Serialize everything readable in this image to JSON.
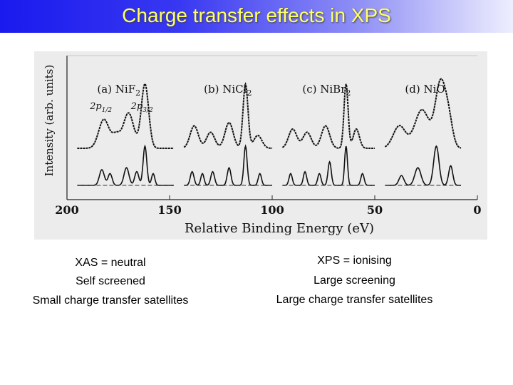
{
  "slide": {
    "title": "Charge transfer effects in XPS",
    "left_column": [
      "XAS = neutral",
      "Self screened",
      "Small charge transfer satellites"
    ],
    "right_column": [
      "XPS = ionising",
      "Large screening",
      "Large charge transfer satellites"
    ]
  },
  "chart_data": {
    "type": "line",
    "xlabel": "Relative Binding Energy (eV)",
    "ylabel": "Intensity (arb. units)",
    "xlim": [
      200,
      0
    ],
    "x_ticks": [
      200,
      150,
      100,
      50,
      0
    ],
    "x_tick_labels": [
      "200",
      "150",
      "100",
      "50",
      "0"
    ],
    "grid": false,
    "panels": [
      {
        "label": "(a) NiF",
        "subscript": "2",
        "peak_labels": [
          {
            "main": "2p",
            "sub": "1/2",
            "x": 184
          },
          {
            "main": "2p",
            "sub": "3/2",
            "x": 164
          }
        ],
        "x_range": [
          195,
          148
        ],
        "top_peaks": [
          [
            182,
            0.45,
            2.5
          ],
          [
            170,
            0.55,
            2.5
          ],
          [
            162,
            1.0,
            1.8
          ],
          [
            176,
            0.2,
            2
          ]
        ],
        "bottom_peaks": [
          [
            183,
            0.4,
            1.2
          ],
          [
            179,
            0.3,
            1.0
          ],
          [
            171,
            0.45,
            1.2
          ],
          [
            166,
            0.35,
            1.0
          ],
          [
            162,
            1.0,
            0.9
          ],
          [
            158,
            0.3,
            0.8
          ]
        ]
      },
      {
        "label": "(b) NiCl",
        "subscript": "2",
        "peak_labels": [],
        "x_range": [
          143,
          100
        ],
        "top_peaks": [
          [
            138,
            0.35,
            2
          ],
          [
            130,
            0.25,
            2
          ],
          [
            121,
            0.4,
            2
          ],
          [
            113,
            1.0,
            1.2
          ],
          [
            107,
            0.2,
            2
          ]
        ],
        "bottom_peaks": [
          [
            139,
            0.35,
            0.9
          ],
          [
            134,
            0.3,
            0.8
          ],
          [
            129,
            0.35,
            0.9
          ],
          [
            121,
            0.45,
            0.9
          ],
          [
            113,
            1.0,
            0.8
          ],
          [
            106,
            0.3,
            0.8
          ]
        ]
      },
      {
        "label": "(c) NiBr",
        "subscript": "2",
        "peak_labels": [],
        "x_range": [
          95,
          50
        ],
        "top_peaks": [
          [
            90,
            0.3,
            2
          ],
          [
            83,
            0.25,
            2
          ],
          [
            74,
            0.35,
            2
          ],
          [
            64,
            1.0,
            1.0
          ],
          [
            59,
            0.3,
            1.5
          ]
        ],
        "bottom_peaks": [
          [
            91,
            0.3,
            0.8
          ],
          [
            84,
            0.35,
            0.8
          ],
          [
            77,
            0.3,
            0.8
          ],
          [
            72,
            0.6,
            0.8
          ],
          [
            64,
            1.0,
            0.7
          ],
          [
            56,
            0.3,
            0.8
          ]
        ]
      },
      {
        "label": "(d) NiO",
        "subscript": "",
        "peak_labels": [],
        "x_range": [
          45,
          8
        ],
        "top_peaks": [
          [
            38,
            0.35,
            3
          ],
          [
            27,
            0.6,
            3.5
          ],
          [
            18,
            1.0,
            2.5
          ],
          [
            14,
            0.4,
            2
          ]
        ],
        "bottom_peaks": [
          [
            37,
            0.25,
            1.2
          ],
          [
            29,
            0.45,
            1.5
          ],
          [
            20,
            1.0,
            1.3
          ],
          [
            13,
            0.5,
            1.0
          ]
        ]
      }
    ]
  }
}
